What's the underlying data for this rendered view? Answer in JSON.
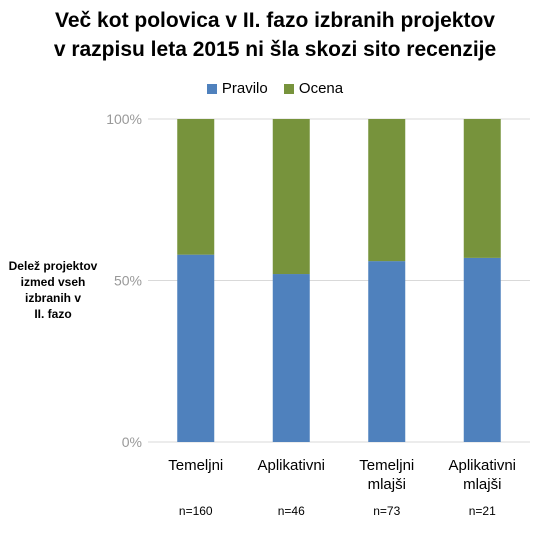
{
  "chart_data": {
    "type": "bar",
    "stacked": true,
    "normalized": true,
    "title": [
      "Več kot polovica v II. fazo izbranih projektov",
      "v razpisu leta 2015 ni šla skozi sito recenzije"
    ],
    "ylabel": [
      "Delež projektov",
      "izmed vseh",
      "izbranih v",
      "II. fazo"
    ],
    "ylim": [
      0,
      100
    ],
    "yticks": [
      "0%",
      "50%",
      "100%"
    ],
    "categories": [
      [
        "Temeljni"
      ],
      [
        "Aplikativni"
      ],
      [
        "Temeljni",
        "mlajši"
      ],
      [
        "Aplikativni",
        "mlajši"
      ]
    ],
    "sample_sizes": [
      "n=160",
      "n=46",
      "n=73",
      "n=21"
    ],
    "series": [
      {
        "name": "Pravilo",
        "color": "#4f81bd",
        "values": [
          58,
          52,
          56,
          57
        ]
      },
      {
        "name": "Ocena",
        "color": "#77933c",
        "values": [
          42,
          48,
          44,
          43
        ]
      }
    ],
    "legend_position": "top",
    "grid": true
  }
}
